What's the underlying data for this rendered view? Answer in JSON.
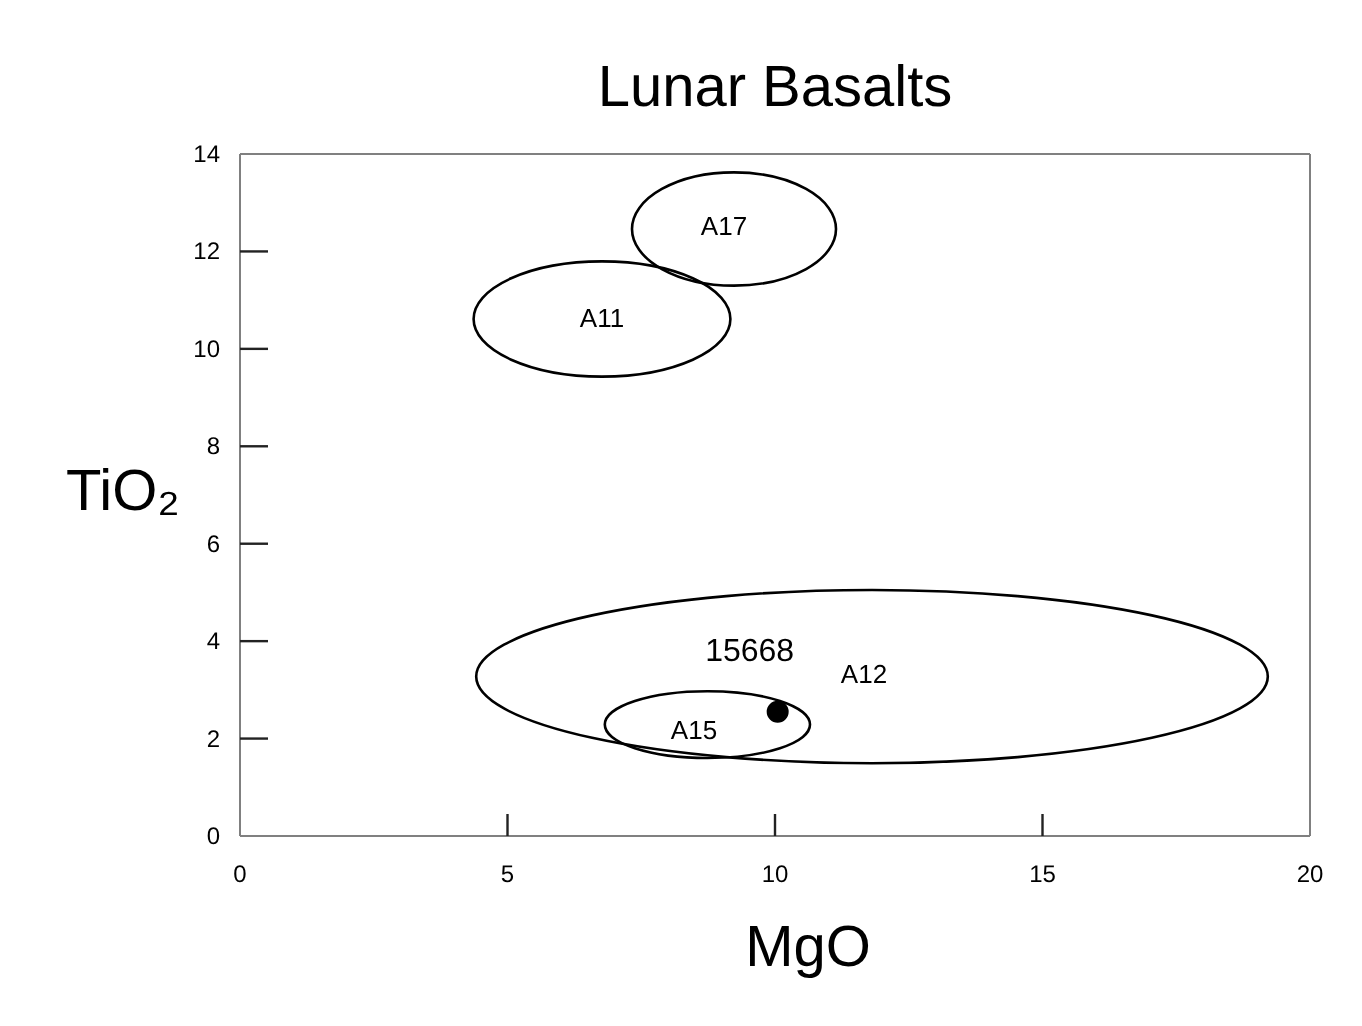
{
  "chart_data": {
    "type": "scatter",
    "title": "Lunar Basalts",
    "xlabel": "MgO",
    "ylabel": "TiO₂",
    "xlim": [
      0,
      20
    ],
    "ylim": [
      0,
      14
    ],
    "xticks": [
      0,
      5,
      10,
      15,
      20
    ],
    "yticks": [
      0,
      2,
      4,
      6,
      8,
      10,
      12,
      14
    ],
    "x": [
      10.05
    ],
    "values": [
      2.55
    ],
    "color": "#000000",
    "marker": "circle",
    "annotations": [
      "A17",
      "A11",
      "A12",
      "A15",
      {
        "text": "15668",
        "x": 10.05,
        "y": 2.55
      }
    ]
  }
}
